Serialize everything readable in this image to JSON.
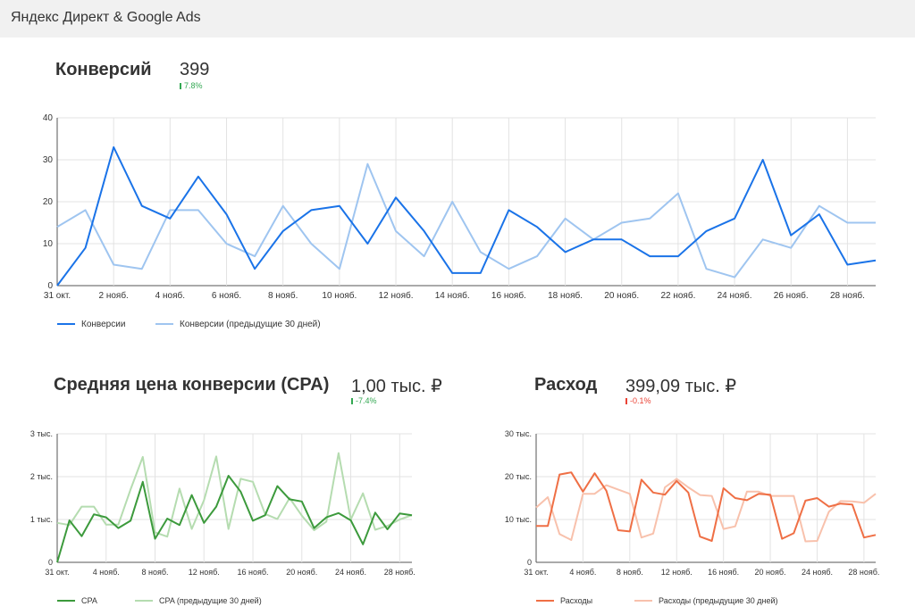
{
  "app": {
    "title": "Яндекс Директ & Google Ads"
  },
  "colors": {
    "conv_current": "#1a73e8",
    "conv_previous": "#9fc5f0",
    "cpa_current": "#3c9a3c",
    "cpa_previous": "#b5dcb0",
    "spend_current": "#ef6f45",
    "spend_previous": "#f8c1ac",
    "positive": "#34a853",
    "negative": "#ea4335"
  },
  "conversions": {
    "title": "Конверсий",
    "value": "399",
    "delta": "7.8%",
    "delta_direction": "up",
    "chart_data": {
      "type": "line",
      "x": [
        "31 окт.",
        "1 нояб.",
        "2 нояб.",
        "3 нояб.",
        "4 нояб.",
        "5 нояб.",
        "6 нояб.",
        "7 нояб.",
        "8 нояб.",
        "9 нояб.",
        "10 нояб.",
        "11 нояб.",
        "12 нояб.",
        "13 нояб.",
        "14 нояб.",
        "15 нояб.",
        "16 нояб.",
        "17 нояб.",
        "18 нояб.",
        "19 нояб.",
        "20 нояб.",
        "21 нояб.",
        "22 нояб.",
        "23 нояб.",
        "24 нояб.",
        "25 нояб.",
        "26 нояб.",
        "27 нояб.",
        "28 нояб.",
        "29 нояб."
      ],
      "xticks": [
        "31 окт.",
        "2 нояб.",
        "4 нояб.",
        "6 нояб.",
        "8 нояб.",
        "10 нояб.",
        "12 нояб.",
        "14 нояб.",
        "16 нояб.",
        "18 нояб.",
        "20 нояб.",
        "22 нояб.",
        "24 нояб.",
        "26 нояб.",
        "28 нояб."
      ],
      "yticks": [
        "0",
        "10",
        "20",
        "30",
        "40"
      ],
      "ylim": [
        0,
        40
      ],
      "series": [
        {
          "name": "Конверсии",
          "color": "#1a73e8",
          "values": [
            0,
            9,
            33,
            19,
            16,
            26,
            17,
            4,
            13,
            18,
            19,
            10,
            21,
            13,
            3,
            3,
            18,
            14,
            8,
            11,
            11,
            7,
            7,
            13,
            16,
            30,
            12,
            17,
            5,
            6
          ]
        },
        {
          "name": "Конверсии (предыдущие 30 дней)",
          "color": "#9fc5f0",
          "values": [
            14,
            18,
            5,
            4,
            18,
            18,
            10,
            7,
            19,
            10,
            4,
            29,
            13,
            7,
            20,
            8,
            4,
            7,
            16,
            11,
            15,
            16,
            22,
            4,
            2,
            11,
            9,
            19,
            15,
            15
          ]
        }
      ]
    }
  },
  "cpa": {
    "title": "Средняя цена конверсии (CPA)",
    "value": "1,00 тыс. ₽",
    "delta": "-7.4%",
    "delta_direction": "down_good",
    "chart_data": {
      "type": "line",
      "x": [
        "31 окт.",
        "1 нояб.",
        "2 нояб.",
        "3 нояб.",
        "4 нояб.",
        "5 нояб.",
        "6 нояб.",
        "7 нояб.",
        "8 нояб.",
        "9 нояб.",
        "10 нояб.",
        "11 нояб.",
        "12 нояб.",
        "13 нояб.",
        "14 нояб.",
        "15 нояб.",
        "16 нояб.",
        "17 нояб.",
        "18 нояб.",
        "19 нояб.",
        "20 нояб.",
        "21 нояб.",
        "22 нояб.",
        "23 нояб.",
        "24 нояб.",
        "25 нояб.",
        "26 нояб.",
        "27 нояб.",
        "28 нояб.",
        "29 нояб."
      ],
      "xticks": [
        "31 окт.",
        "4 нояб.",
        "8 нояб.",
        "12 нояб.",
        "16 нояб.",
        "20 нояб.",
        "24 нояб.",
        "28 нояб."
      ],
      "yticks": [
        "0",
        "1 тыс.",
        "2 тыс.",
        "3 тыс."
      ],
      "ylim": [
        0,
        3000
      ],
      "series": [
        {
          "name": "CPA",
          "color": "#3c9a3c",
          "values": [
            0,
            980,
            610,
            1120,
            1050,
            800,
            970,
            1880,
            550,
            1020,
            870,
            1570,
            920,
            1300,
            2020,
            1650,
            970,
            1100,
            1780,
            1470,
            1420,
            800,
            1050,
            1150,
            980,
            420,
            1160,
            770,
            1140,
            1100
          ]
        },
        {
          "name": "CPA (предыдущие 30 дней)",
          "color": "#b5dcb0",
          "values": [
            920,
            870,
            1300,
            1300,
            880,
            880,
            1700,
            2460,
            700,
            600,
            1720,
            780,
            1450,
            2470,
            780,
            1950,
            1880,
            1130,
            1010,
            1500,
            1090,
            750,
            950,
            2550,
            1000,
            1610,
            760,
            850,
            1000,
            1100
          ]
        }
      ]
    }
  },
  "spend": {
    "title": "Расход",
    "value": "399,09 тыс. ₽",
    "delta": "-0.1%",
    "delta_direction": "down",
    "chart_data": {
      "type": "line",
      "x": [
        "31 окт.",
        "1 нояб.",
        "2 нояб.",
        "3 нояб.",
        "4 нояб.",
        "5 нояб.",
        "6 нояб.",
        "7 нояб.",
        "8 нояб.",
        "9 нояб.",
        "10 нояб.",
        "11 нояб.",
        "12 нояб.",
        "13 нояб.",
        "14 нояб.",
        "15 нояб.",
        "16 нояб.",
        "17 нояб.",
        "18 нояб.",
        "19 нояб.",
        "20 нояб.",
        "21 нояб.",
        "22 нояб.",
        "23 нояб.",
        "24 нояб.",
        "25 нояб.",
        "26 нояб.",
        "27 нояб.",
        "28 нояб.",
        "29 нояб."
      ],
      "xticks": [
        "31 окт.",
        "4 нояб.",
        "8 нояб.",
        "12 нояб.",
        "16 нояб.",
        "20 нояб.",
        "24 нояб.",
        "28 нояб."
      ],
      "yticks": [
        "0",
        "10 тыс.",
        "20 тыс.",
        "30 тыс."
      ],
      "ylim": [
        0,
        30000
      ],
      "series": [
        {
          "name": "Расходы",
          "color": "#ef6f45",
          "values": [
            8500,
            8500,
            20500,
            21000,
            16500,
            20800,
            16700,
            7500,
            7200,
            19300,
            16300,
            15800,
            19000,
            16300,
            6000,
            5000,
            17300,
            15000,
            14500,
            16000,
            15800,
            5500,
            6800,
            14400,
            15000,
            13000,
            13700,
            13500,
            5800,
            6400
          ]
        },
        {
          "name": "Расходы (предыдущие 30 дней)",
          "color": "#f8c1ac",
          "values": [
            12800,
            15200,
            6600,
            5200,
            16000,
            16000,
            18000,
            17000,
            16000,
            5800,
            6700,
            17500,
            19500,
            17500,
            15700,
            15500,
            7800,
            8400,
            16500,
            16500,
            15500,
            15500,
            15500,
            4900,
            5000,
            11800,
            14300,
            14200,
            13900,
            16000
          ]
        }
      ]
    }
  }
}
